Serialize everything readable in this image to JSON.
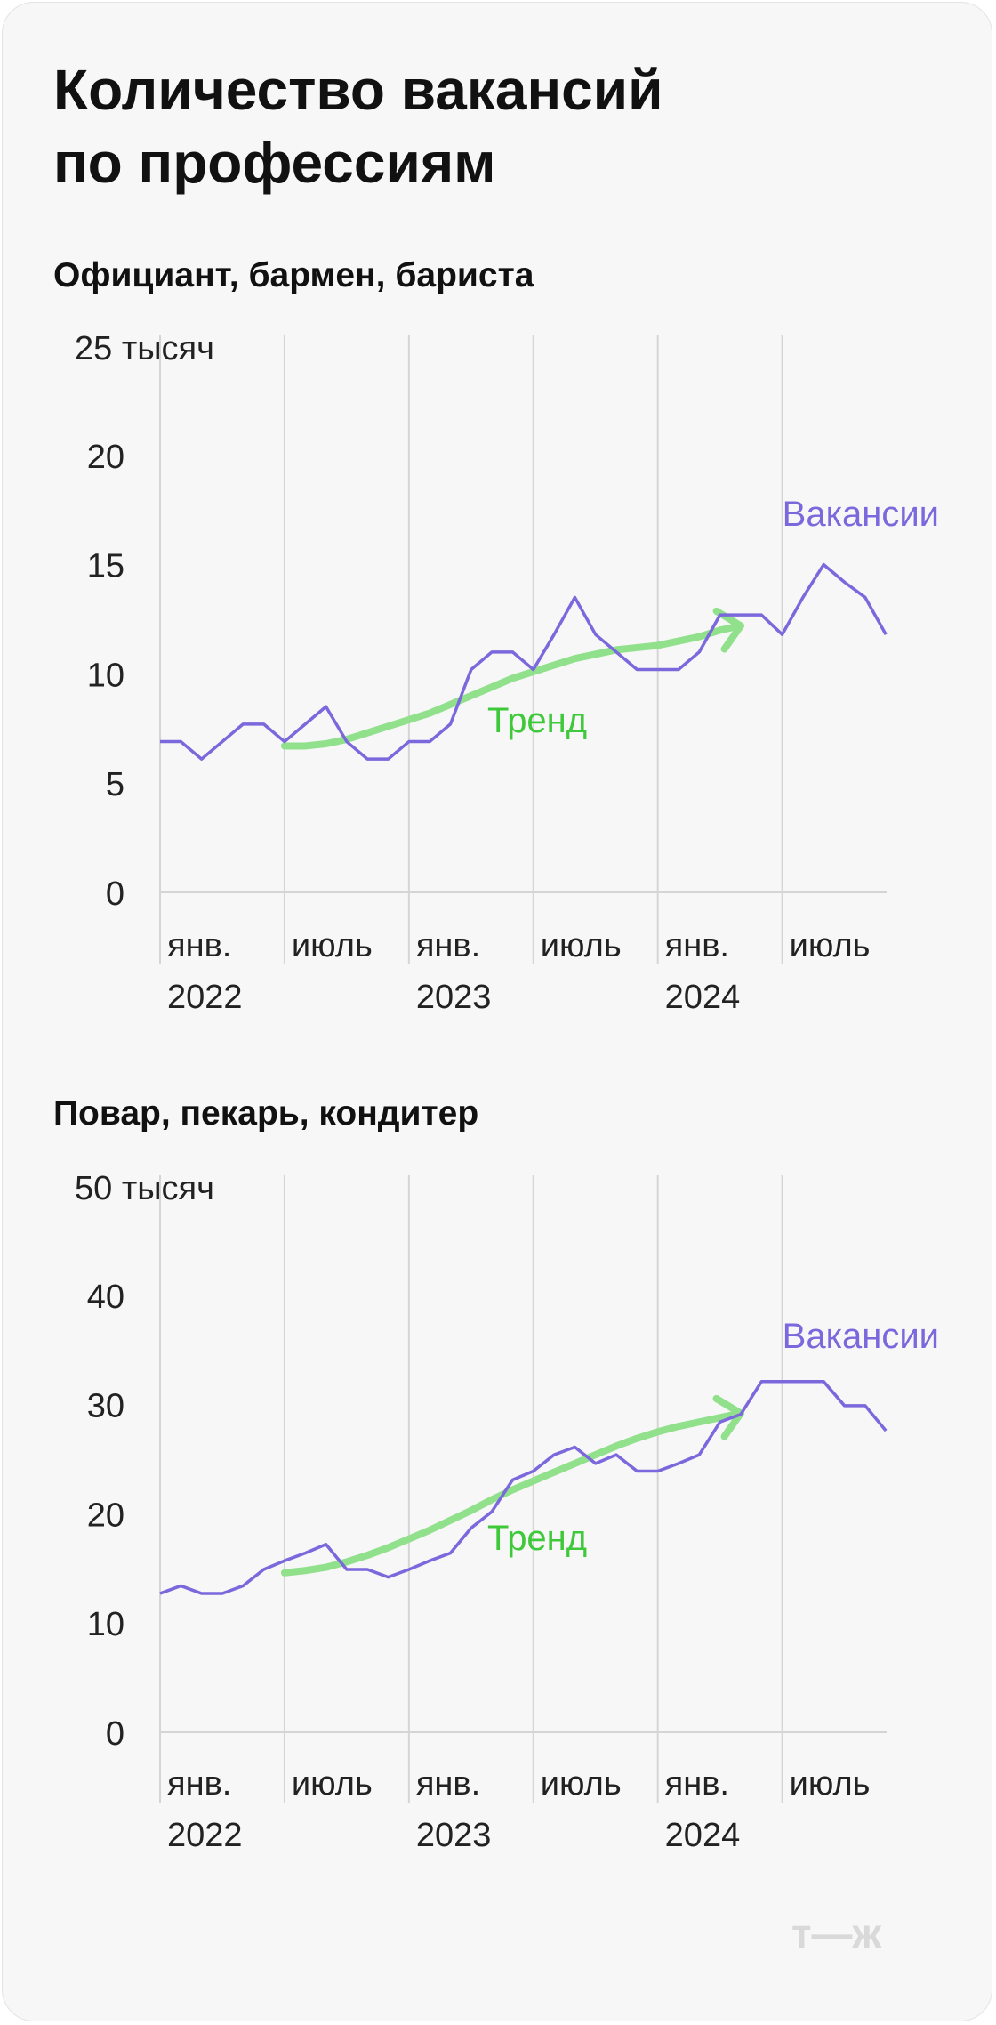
{
  "title": "Количество вакансий\nпо профессиям",
  "brand_logo": "т—ж",
  "colors": {
    "vacancies": "#7a68dc",
    "trend": "#91e08c",
    "trend_label": "#3ec93a",
    "grid": "#d5d5d5"
  },
  "chart_data": [
    {
      "type": "line",
      "subtitle": "Официант, бармен, бариста",
      "y_top_label": "25 тысяч",
      "y_ticks": [
        "0",
        "5",
        "10",
        "15",
        "20"
      ],
      "ylim": [
        0,
        25
      ],
      "x_tick_labels": [
        {
          "month": "янв.",
          "year": "2022"
        },
        {
          "month": "июль",
          "year": ""
        },
        {
          "month": "янв.",
          "year": "2023"
        },
        {
          "month": "июль",
          "year": ""
        },
        {
          "month": "янв.",
          "year": "2024"
        },
        {
          "month": "июль",
          "year": ""
        }
      ],
      "grid": true,
      "series": [
        {
          "name": "Вакансии",
          "x": [
            "2022-01",
            "2022-02",
            "2022-03",
            "2022-04",
            "2022-05",
            "2022-06",
            "2022-07",
            "2022-08",
            "2022-09",
            "2022-10",
            "2022-11",
            "2022-12",
            "2023-01",
            "2023-02",
            "2023-03",
            "2023-04",
            "2023-05",
            "2023-06",
            "2023-07",
            "2023-08",
            "2023-09",
            "2023-10",
            "2023-11",
            "2023-12",
            "2024-01",
            "2024-02",
            "2024-03",
            "2024-04",
            "2024-05",
            "2024-06",
            "2024-07",
            "2024-08",
            "2024-09",
            "2024-10",
            "2024-11",
            "2024-12"
          ],
          "values": [
            6.9,
            6.9,
            6.1,
            6.9,
            7.7,
            7.7,
            6.9,
            7.7,
            8.5,
            6.9,
            6.1,
            6.1,
            6.9,
            6.9,
            7.7,
            10.2,
            11.0,
            11.0,
            10.2,
            11.8,
            13.5,
            11.8,
            11.0,
            10.2,
            10.2,
            10.2,
            11.0,
            12.7,
            12.7,
            12.7,
            11.8,
            13.5,
            15.0,
            14.2,
            13.5,
            11.8
          ]
        },
        {
          "name": "Тренд",
          "x": [
            "2022-07",
            "2022-08",
            "2022-09",
            "2022-10",
            "2022-11",
            "2022-12",
            "2023-01",
            "2023-02",
            "2023-03",
            "2023-04",
            "2023-05",
            "2023-06",
            "2023-07",
            "2023-08",
            "2023-09",
            "2023-10",
            "2023-11",
            "2023-12",
            "2024-01",
            "2024-02",
            "2024-03",
            "2024-04",
            "2024-05"
          ],
          "values": [
            6.7,
            6.7,
            6.8,
            7.0,
            7.3,
            7.6,
            7.9,
            8.2,
            8.6,
            9.0,
            9.4,
            9.8,
            10.1,
            10.4,
            10.7,
            10.9,
            11.1,
            11.2,
            11.3,
            11.5,
            11.7,
            12.0,
            12.2
          ]
        }
      ]
    },
    {
      "type": "line",
      "subtitle": "Повар, пекарь, кондитер",
      "y_top_label": "50 тысяч",
      "y_ticks": [
        "0",
        "10",
        "20",
        "30",
        "40"
      ],
      "ylim": [
        0,
        50
      ],
      "x_tick_labels": [
        {
          "month": "янв.",
          "year": "2022"
        },
        {
          "month": "июль",
          "year": ""
        },
        {
          "month": "янв.",
          "year": "2023"
        },
        {
          "month": "июль",
          "year": ""
        },
        {
          "month": "янв.",
          "year": "2024"
        },
        {
          "month": "июль",
          "year": ""
        }
      ],
      "grid": true,
      "series": [
        {
          "name": "Вакансии",
          "x": [
            "2022-01",
            "2022-02",
            "2022-03",
            "2022-04",
            "2022-05",
            "2022-06",
            "2022-07",
            "2022-08",
            "2022-09",
            "2022-10",
            "2022-11",
            "2022-12",
            "2023-01",
            "2023-02",
            "2023-03",
            "2023-04",
            "2023-05",
            "2023-06",
            "2023-07",
            "2023-08",
            "2023-09",
            "2023-10",
            "2023-11",
            "2023-12",
            "2024-01",
            "2024-02",
            "2024-03",
            "2024-04",
            "2024-05",
            "2024-06",
            "2024-07",
            "2024-08",
            "2024-09",
            "2024-10",
            "2024-11",
            "2024-12"
          ],
          "values": [
            12.7,
            13.4,
            12.7,
            12.7,
            13.4,
            14.9,
            15.7,
            16.4,
            17.2,
            14.9,
            14.9,
            14.2,
            14.9,
            15.7,
            16.4,
            18.7,
            20.2,
            23.1,
            23.9,
            25.4,
            26.1,
            24.6,
            25.4,
            23.9,
            23.9,
            24.6,
            25.4,
            28.4,
            29.1,
            32.1,
            32.1,
            32.1,
            32.1,
            29.9,
            29.9,
            27.6
          ]
        },
        {
          "name": "Тренд",
          "x": [
            "2022-07",
            "2022-08",
            "2022-09",
            "2022-10",
            "2022-11",
            "2022-12",
            "2023-01",
            "2023-02",
            "2023-03",
            "2023-04",
            "2023-05",
            "2023-06",
            "2023-07",
            "2023-08",
            "2023-09",
            "2023-10",
            "2023-11",
            "2023-12",
            "2024-01",
            "2024-02",
            "2024-03",
            "2024-04",
            "2024-05"
          ],
          "values": [
            14.6,
            14.8,
            15.1,
            15.6,
            16.2,
            16.9,
            17.7,
            18.5,
            19.4,
            20.3,
            21.3,
            22.2,
            23.0,
            23.8,
            24.6,
            25.4,
            26.2,
            26.9,
            27.5,
            28.0,
            28.4,
            28.8,
            29.2
          ]
        }
      ]
    }
  ]
}
